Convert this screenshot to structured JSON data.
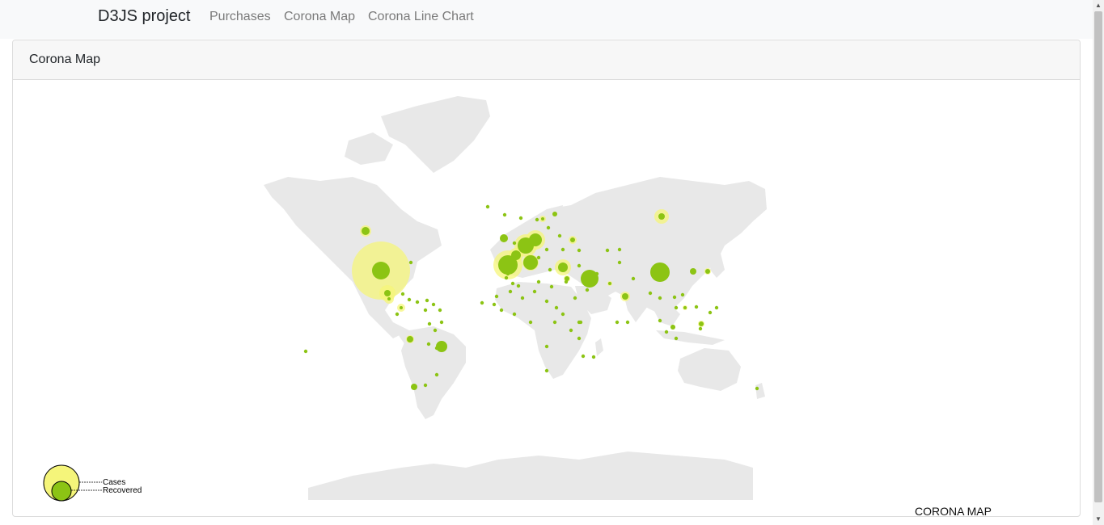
{
  "navbar": {
    "brand": "D3JS project",
    "links": [
      "Purchases",
      "Corona Map",
      "Corona Line Chart"
    ]
  },
  "card": {
    "title": "Corona Map"
  },
  "map": {
    "label": "CORONA MAP",
    "legend": {
      "cases_label": "Cases",
      "recovered_label": "Recovered"
    },
    "colors": {
      "land": "#e8e8e8",
      "cases": "#f5f57a",
      "recovered": "#8cc414"
    }
  }
}
